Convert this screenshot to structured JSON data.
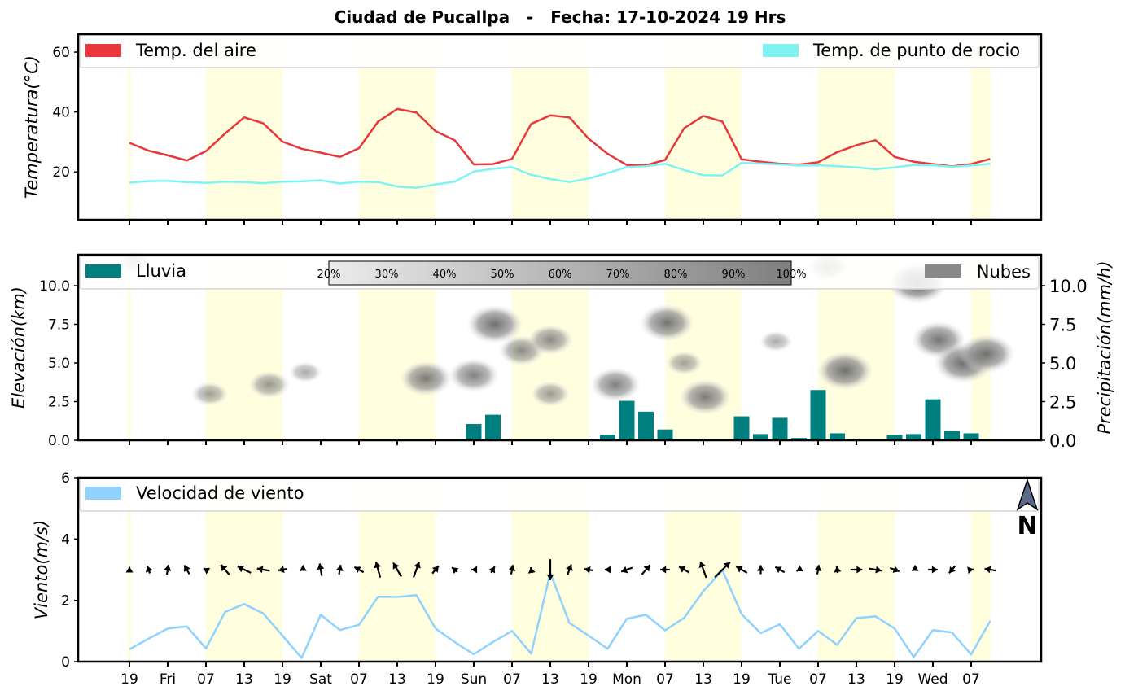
{
  "title": "Ciudad de Pucallpa   -   Fecha: 17-10-2024 19 Hrs",
  "colors": {
    "air_temp": "#e8383b",
    "dew_point": "#7ff3f3",
    "rain": "#007f7f",
    "clouds": "#888888",
    "wind_speed": "#8fd2ff",
    "daylight_band": "#ffffe0",
    "north_arrow": "#5b6b88"
  },
  "x_ticks": [
    "19",
    "Fri",
    "07",
    "13",
    "19",
    "Sat",
    "07",
    "13",
    "19",
    "Sun",
    "07",
    "13",
    "19",
    "Mon",
    "07",
    "13",
    "19",
    "Tue",
    "07",
    "13",
    "19",
    "Wed",
    "07"
  ],
  "chart_data": [
    {
      "type": "line",
      "panel": "temperature",
      "ylabel": "Temperatura(°C)",
      "ylim": [
        4,
        66
      ],
      "yticks": [
        20,
        40,
        60
      ],
      "legend": "top, spanning width",
      "series": [
        {
          "name": "Temp. del aire",
          "values": [
            29.7,
            27.1,
            25.5,
            23.8,
            26.9,
            32.8,
            38.2,
            36.2,
            30.1,
            27.7,
            26.4,
            25.0,
            27.9,
            36.8,
            41.0,
            39.8,
            33.6,
            30.6,
            22.5,
            22.6,
            24.3,
            36.0,
            38.9,
            38.2,
            31.1,
            26.0,
            22.3,
            22.2,
            24.0,
            34.6,
            38.7,
            36.8,
            24.2,
            23.4,
            22.7,
            22.4,
            23.2,
            26.6,
            28.9,
            30.6,
            25.0,
            23.4,
            22.6,
            21.8,
            22.6,
            24.3
          ]
        },
        {
          "name": "Temp. de punto de rocio",
          "values": [
            16.4,
            16.9,
            17.0,
            16.6,
            16.3,
            16.7,
            16.6,
            16.2,
            16.7,
            16.8,
            17.2,
            16.1,
            16.7,
            16.6,
            15.1,
            14.7,
            15.8,
            16.7,
            20.1,
            21.0,
            21.6,
            19.0,
            17.6,
            16.6,
            17.8,
            19.6,
            21.6,
            21.9,
            22.7,
            20.6,
            18.9,
            18.8,
            23.0,
            22.8,
            22.5,
            22.1,
            22.2,
            21.9,
            21.5,
            20.9,
            21.5,
            22.3,
            22.2,
            21.7,
            22.1,
            22.7
          ]
        }
      ]
    },
    {
      "type": "bar",
      "panel": "precipitation_clouds",
      "ylabel_left": "Elevación(km)",
      "ylabel_right": "Precipitación(mm/h)",
      "ylim": [
        0,
        12
      ],
      "yticks_left": [
        "0.0",
        "2.5",
        "5.0",
        "7.5",
        "10.0"
      ],
      "yticks_right": [
        "0.0",
        "2.5",
        "5.0",
        "7.5",
        "10.0"
      ],
      "legend": [
        "Lluvia",
        "Nubes"
      ],
      "cloud_scale_labels": [
        "20%",
        "30%",
        "40%",
        "50%",
        "60%",
        "70%",
        "80%",
        "90%",
        "100%"
      ],
      "series": [
        {
          "name": "Lluvia",
          "values": [
            0,
            0,
            0,
            0,
            0,
            0,
            0,
            0,
            0,
            0,
            0,
            0,
            0,
            0,
            0,
            0,
            0,
            0,
            1.05,
            1.65,
            0,
            0,
            0,
            0,
            0,
            0.35,
            2.55,
            1.85,
            0.7,
            0,
            0.05,
            0,
            1.55,
            0.4,
            1.45,
            0.15,
            3.25,
            0.45,
            0,
            0,
            0.35,
            0.4,
            2.65,
            0.6,
            0.45,
            0
          ]
        }
      ],
      "clouds": [
        {
          "t": 4.2,
          "km": 3.0,
          "coverage": 0.35
        },
        {
          "t": 7.3,
          "km": 3.6,
          "coverage": 0.45
        },
        {
          "t": 9.2,
          "km": 4.4,
          "coverage": 0.25
        },
        {
          "t": 15.5,
          "km": 4.0,
          "coverage": 0.7
        },
        {
          "t": 18.0,
          "km": 4.2,
          "coverage": 0.65
        },
        {
          "t": 19.1,
          "km": 7.5,
          "coverage": 0.8
        },
        {
          "t": 20.5,
          "km": 5.8,
          "coverage": 0.55
        },
        {
          "t": 22.0,
          "km": 6.5,
          "coverage": 0.55
        },
        {
          "t": 22.0,
          "km": 3.0,
          "coverage": 0.4
        },
        {
          "t": 25.4,
          "km": 3.6,
          "coverage": 0.65
        },
        {
          "t": 28.1,
          "km": 7.6,
          "coverage": 0.75
        },
        {
          "t": 29.0,
          "km": 5.0,
          "coverage": 0.35
        },
        {
          "t": 30.1,
          "km": 2.8,
          "coverage": 0.7
        },
        {
          "t": 33.8,
          "km": 6.4,
          "coverage": 0.25
        },
        {
          "t": 36.5,
          "km": 11.2,
          "coverage": 0.45
        },
        {
          "t": 37.4,
          "km": 4.5,
          "coverage": 0.8
        },
        {
          "t": 41.2,
          "km": 10.2,
          "coverage": 0.9
        },
        {
          "t": 42.3,
          "km": 6.5,
          "coverage": 0.75
        },
        {
          "t": 43.6,
          "km": 5.0,
          "coverage": 0.85
        },
        {
          "t": 44.8,
          "km": 5.6,
          "coverage": 0.8
        },
        {
          "t": 0.3,
          "km": 11.5,
          "coverage": 0.25
        }
      ]
    },
    {
      "type": "line",
      "panel": "wind",
      "ylabel": "Viento(m/s)",
      "ylim": [
        0,
        6
      ],
      "yticks": [
        0,
        2,
        4,
        6
      ],
      "legend": "top, spanning width",
      "series": [
        {
          "name": "Velocidad de viento",
          "values": [
            0.4,
            0.75,
            1.08,
            1.15,
            0.43,
            1.62,
            1.88,
            1.57,
            0.85,
            0.12,
            1.53,
            1.03,
            1.2,
            2.12,
            2.11,
            2.17,
            1.08,
            0.64,
            0.24,
            0.64,
            1.0,
            0.26,
            2.9,
            1.26,
            0.85,
            0.42,
            1.4,
            1.53,
            1.02,
            1.43,
            2.3,
            2.98,
            1.55,
            0.93,
            1.22,
            0.42,
            1.0,
            0.55,
            1.42,
            1.48,
            1.08,
            0.15,
            1.03,
            0.95,
            0.23,
            1.33
          ]
        }
      ],
      "wind_direction_deg": [
        0,
        340,
        10,
        330,
        300,
        320,
        295,
        280,
        260,
        240,
        350,
        10,
        300,
        345,
        330,
        20,
        40,
        310,
        270,
        30,
        10,
        350,
        180,
        20,
        280,
        270,
        250,
        40,
        270,
        300,
        340,
        45,
        300,
        0,
        300,
        240,
        10,
        350,
        90,
        100,
        110,
        240,
        90,
        220,
        80,
        280
      ],
      "north_label": "N"
    }
  ]
}
